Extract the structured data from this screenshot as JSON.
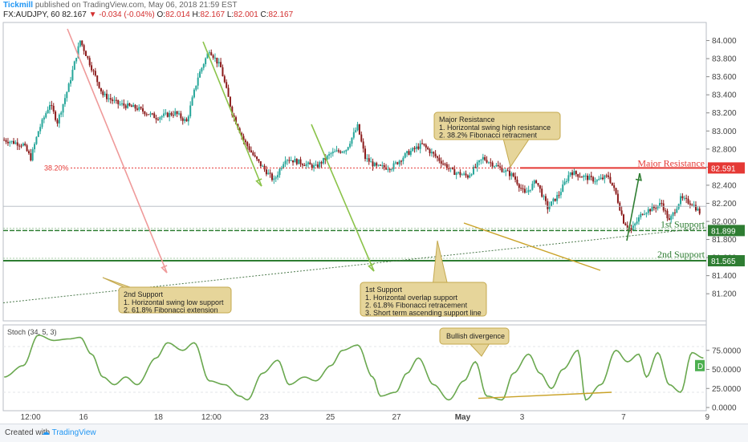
{
  "header": {
    "publisher": "Tickmill",
    "published_text": "published on TradingView.com, May 06, 2018 21:59 EST",
    "symbol": "FX:AUDJPY, 60",
    "change": "-0.034 (-0.04%)",
    "o_label": "O:",
    "o": "82.014",
    "h_label": "H:",
    "h": "82.167",
    "l_label": "L:",
    "l": "82.001",
    "c_label": "C:",
    "c": "82.167",
    "last": "82.167"
  },
  "footer": {
    "created_with": "Created with",
    "brand": "TradingView"
  },
  "colors": {
    "up": "#26a69a",
    "down": "#8b1a1a",
    "stoch": "#6aa84f",
    "resistance": "#e53935",
    "support": "#2e7d32",
    "note_bg": "#e6d59a",
    "note_border": "#c4a94f"
  },
  "chart_data": {
    "type": "candlestick",
    "symbol": "FX:AUDJPY",
    "interval": "60",
    "y_range": [
      80.9,
      84.2
    ],
    "price_ticks": [
      "84.000",
      "83.800",
      "83.600",
      "83.400",
      "83.200",
      "83.000",
      "82.800",
      "82.600",
      "82.400",
      "82.200",
      "82.000",
      "81.800",
      "81.600",
      "81.400",
      "81.200"
    ],
    "x_ticks": [
      "12:00",
      "16",
      "18",
      "12:00",
      "23",
      "25",
      "27",
      "May",
      "3",
      "7",
      "9"
    ],
    "fib_label": "38.20%",
    "levels": [
      {
        "name": "Major Resistance",
        "price": "82.591",
        "value": 82.591
      },
      {
        "name": "1st Support",
        "price": "81.899",
        "value": 81.899
      },
      {
        "name": "2nd Support",
        "price": "81.565",
        "value": 81.565
      }
    ],
    "last_price_marker": {
      "value": 82.167
    },
    "waypoints": [
      [
        0,
        82.9
      ],
      [
        10,
        82.85
      ],
      [
        14,
        82.7
      ],
      [
        18,
        83.0
      ],
      [
        24,
        83.3
      ],
      [
        28,
        83.1
      ],
      [
        34,
        83.5
      ],
      [
        40,
        84.0
      ],
      [
        46,
        83.7
      ],
      [
        52,
        83.4
      ],
      [
        60,
        83.3
      ],
      [
        70,
        83.25
      ],
      [
        80,
        83.15
      ],
      [
        90,
        83.2
      ],
      [
        96,
        83.1
      ],
      [
        102,
        83.6
      ],
      [
        108,
        83.9
      ],
      [
        114,
        83.7
      ],
      [
        120,
        83.2
      ],
      [
        126,
        82.9
      ],
      [
        132,
        82.7
      ],
      [
        138,
        82.55
      ],
      [
        142,
        82.45
      ],
      [
        148,
        82.7
      ],
      [
        156,
        82.65
      ],
      [
        164,
        82.6
      ],
      [
        172,
        82.75
      ],
      [
        180,
        82.8
      ],
      [
        186,
        83.05
      ],
      [
        190,
        82.7
      ],
      [
        196,
        82.6
      ],
      [
        204,
        82.6
      ],
      [
        212,
        82.75
      ],
      [
        220,
        82.85
      ],
      [
        228,
        82.7
      ],
      [
        236,
        82.55
      ],
      [
        244,
        82.5
      ],
      [
        252,
        82.7
      ],
      [
        260,
        82.6
      ],
      [
        268,
        82.5
      ],
      [
        274,
        82.3
      ],
      [
        280,
        82.45
      ],
      [
        286,
        82.15
      ],
      [
        292,
        82.3
      ],
      [
        298,
        82.55
      ],
      [
        304,
        82.5
      ],
      [
        312,
        82.45
      ],
      [
        318,
        82.5
      ],
      [
        322,
        82.3
      ],
      [
        326,
        82.0
      ],
      [
        330,
        81.9
      ],
      [
        336,
        82.1
      ],
      [
        342,
        82.15
      ],
      [
        346,
        82.2
      ],
      [
        350,
        82.0
      ],
      [
        356,
        82.25
      ],
      [
        362,
        82.2
      ],
      [
        366,
        82.1
      ]
    ],
    "stochastic": {
      "label": "Stoch (34, 5, 3)",
      "ticks": [
        "75.0000",
        "50.0000",
        "25.0000",
        "0.0000"
      ],
      "y_range": [
        0,
        100
      ],
      "marker_label": "D",
      "marker_value": 55,
      "waypoints": [
        [
          0,
          40
        ],
        [
          10,
          55
        ],
        [
          18,
          95
        ],
        [
          26,
          88
        ],
        [
          34,
          90
        ],
        [
          40,
          92
        ],
        [
          46,
          70
        ],
        [
          52,
          40
        ],
        [
          58,
          30
        ],
        [
          64,
          40
        ],
        [
          70,
          30
        ],
        [
          80,
          65
        ],
        [
          86,
          85
        ],
        [
          94,
          75
        ],
        [
          100,
          85
        ],
        [
          108,
          35
        ],
        [
          116,
          30
        ],
        [
          124,
          15
        ],
        [
          128,
          10
        ],
        [
          136,
          45
        ],
        [
          144,
          62
        ],
        [
          150,
          30
        ],
        [
          158,
          40
        ],
        [
          164,
          35
        ],
        [
          172,
          55
        ],
        [
          178,
          75
        ],
        [
          186,
          82
        ],
        [
          194,
          40
        ],
        [
          198,
          15
        ],
        [
          206,
          20
        ],
        [
          212,
          45
        ],
        [
          218,
          65
        ],
        [
          226,
          30
        ],
        [
          234,
          10
        ],
        [
          242,
          35
        ],
        [
          248,
          60
        ],
        [
          254,
          15
        ],
        [
          262,
          10
        ],
        [
          268,
          45
        ],
        [
          276,
          70
        ],
        [
          282,
          45
        ],
        [
          288,
          25
        ],
        [
          294,
          50
        ],
        [
          302,
          75
        ],
        [
          306,
          10
        ],
        [
          314,
          30
        ],
        [
          322,
          75
        ],
        [
          328,
          60
        ],
        [
          334,
          70
        ],
        [
          338,
          40
        ],
        [
          344,
          72
        ],
        [
          350,
          30
        ],
        [
          356,
          20
        ],
        [
          362,
          72
        ],
        [
          368,
          65
        ]
      ]
    },
    "annotations": [
      {
        "name": "major-resistance",
        "title": "Major Resistance",
        "lines": [
          "1. Horizontal swing high resistance",
          "2. 38.2% Fibonacci retracment"
        ]
      },
      {
        "name": "2nd-support",
        "title": "2nd Support",
        "lines": [
          "1. Horizontal swing low support",
          "2. 61.8% Fibonacci extension"
        ]
      },
      {
        "name": "1st-support",
        "title": "1st Support",
        "lines": [
          "1. Horizontal overlap support",
          "2. 61.8% Fibonacci retracement",
          "3. Short term ascending support line"
        ]
      },
      {
        "name": "bullish-divergence",
        "title": "Bullish divergence",
        "lines": []
      }
    ]
  }
}
